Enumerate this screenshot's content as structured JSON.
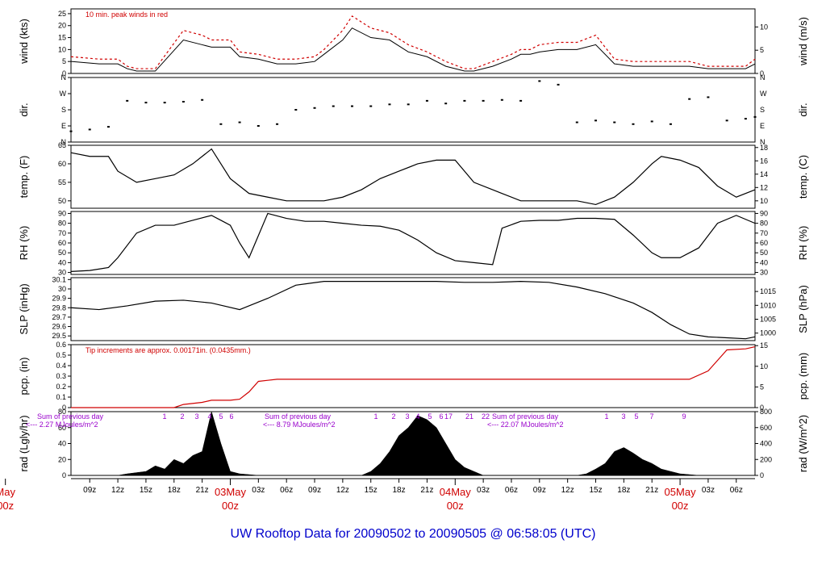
{
  "title": "UW Rooftop Data for 20090502  to  20090505 @ 06:58:05  (UTC)",
  "chart_data": [
    {
      "type": "line",
      "id": "wind",
      "ylabel": "wind (kts)",
      "ylabel_right": "wind (m/s)",
      "ylim": [
        0,
        27
      ],
      "yticks": [
        0,
        5,
        10,
        15,
        20,
        25
      ],
      "yticks_right": [
        0,
        5,
        10
      ],
      "annotation": "10 min. peak winds in red",
      "series": [
        {
          "color": "#000000",
          "x": [
            0,
            3,
            5,
            6,
            7,
            9,
            12,
            14,
            15,
            17,
            18,
            20,
            22,
            24,
            26,
            27,
            29,
            30,
            32,
            34,
            36,
            38,
            40,
            42,
            43,
            45,
            47,
            48,
            49,
            50,
            52,
            54,
            56,
            58,
            60,
            62,
            64,
            66,
            68,
            70,
            72,
            73
          ],
          "y": [
            5,
            4,
            4,
            2,
            1,
            1,
            14,
            12,
            11,
            11,
            7,
            6,
            4,
            4,
            5,
            8,
            14,
            19,
            15,
            14,
            9,
            7,
            3,
            1,
            1,
            3,
            6,
            8,
            8,
            9,
            10,
            10,
            12,
            4,
            3,
            3,
            3,
            3,
            2,
            2,
            2,
            4
          ]
        },
        {
          "color": "#d00000",
          "x": [
            0,
            3,
            5,
            6,
            7,
            9,
            12,
            14,
            15,
            17,
            18,
            20,
            22,
            24,
            26,
            27,
            29,
            30,
            32,
            34,
            36,
            38,
            40,
            42,
            43,
            45,
            47,
            48,
            49,
            50,
            52,
            54,
            56,
            58,
            60,
            62,
            64,
            66,
            68,
            70,
            72,
            73
          ],
          "y": [
            7,
            6,
            6,
            3,
            2,
            2,
            18,
            16,
            14,
            14,
            9,
            8,
            6,
            6,
            7,
            10,
            18,
            24,
            19,
            17,
            12,
            9,
            5,
            2,
            2,
            5,
            8,
            10,
            10,
            12,
            13,
            13,
            16,
            6,
            5,
            5,
            5,
            5,
            3,
            3,
            3,
            6
          ]
        }
      ]
    },
    {
      "type": "scatter",
      "id": "dir",
      "ylabel": "dir.",
      "ylabel_right": "dir.",
      "ylim": [
        0,
        360
      ],
      "yticks": [
        0,
        90,
        180,
        270,
        360
      ],
      "ytick_labels": [
        "N",
        "E",
        "S",
        "W",
        "N"
      ],
      "series": [
        {
          "color": "#000000",
          "x": [
            0,
            2,
            4,
            6,
            8,
            10,
            12,
            14,
            16,
            18,
            20,
            22,
            24,
            26,
            28,
            30,
            32,
            34,
            36,
            38,
            40,
            42,
            44,
            46,
            48,
            50,
            52,
            54,
            56,
            58,
            60,
            62,
            64,
            66,
            68,
            70,
            72,
            73
          ],
          "y": [
            60,
            70,
            85,
            230,
            220,
            220,
            225,
            235,
            100,
            110,
            90,
            100,
            180,
            190,
            200,
            200,
            200,
            210,
            210,
            230,
            215,
            230,
            230,
            235,
            230,
            340,
            320,
            110,
            120,
            110,
            100,
            115,
            100,
            240,
            250,
            120,
            130,
            140
          ]
        }
      ]
    },
    {
      "type": "line",
      "id": "temp",
      "ylabel": "temp. (F)",
      "ylabel_right": "temp. (C)",
      "ylim": [
        48,
        65
      ],
      "yticks": [
        50,
        55,
        60,
        65
      ],
      "yticks_right": [
        10,
        12,
        14,
        16,
        18
      ],
      "series": [
        {
          "color": "#000000",
          "x": [
            0,
            2,
            4,
            5,
            7,
            9,
            11,
            13,
            15,
            17,
            18,
            19,
            21,
            23,
            25,
            27,
            29,
            31,
            33,
            35,
            37,
            39,
            41,
            43,
            45,
            46,
            48,
            50,
            52,
            54,
            56,
            58,
            60,
            62,
            63,
            65,
            67,
            69,
            71,
            73
          ],
          "y": [
            63,
            62,
            62,
            58,
            55,
            56,
            57,
            60,
            64,
            56,
            54,
            52,
            51,
            50,
            50,
            50,
            51,
            53,
            56,
            58,
            60,
            61,
            61,
            55,
            53,
            52,
            50,
            50,
            50,
            50,
            49,
            51,
            55,
            60,
            62,
            61,
            59,
            54,
            51,
            53
          ]
        }
      ]
    },
    {
      "type": "line",
      "id": "rh",
      "ylabel": "RH (%)",
      "ylabel_right": "RH (%)",
      "ylim": [
        28,
        92
      ],
      "yticks": [
        30,
        40,
        50,
        60,
        70,
        80,
        90
      ],
      "yticks_right": [
        30,
        40,
        50,
        60,
        70,
        80,
        90
      ],
      "series": [
        {
          "color": "#000000",
          "x": [
            0,
            2,
            4,
            5,
            7,
            9,
            11,
            13,
            15,
            16,
            17,
            18,
            19,
            21,
            23,
            25,
            27,
            29,
            31,
            33,
            35,
            37,
            39,
            41,
            43,
            45,
            46,
            48,
            50,
            52,
            54,
            56,
            58,
            60,
            62,
            63,
            65,
            67,
            69,
            71,
            73
          ],
          "y": [
            31,
            32,
            35,
            45,
            70,
            78,
            78,
            83,
            88,
            83,
            78,
            60,
            45,
            90,
            85,
            82,
            82,
            80,
            78,
            77,
            73,
            63,
            50,
            42,
            40,
            38,
            75,
            82,
            83,
            83,
            85,
            85,
            84,
            68,
            50,
            45,
            45,
            55,
            80,
            88,
            80
          ]
        }
      ]
    },
    {
      "type": "line",
      "id": "slp",
      "ylabel": "SLP (inHg)",
      "ylabel_right": "SLP (hPa)",
      "ylim": [
        29.45,
        30.12
      ],
      "yticks": [
        29.5,
        29.6,
        29.7,
        29.8,
        29.9,
        30.0,
        30.1
      ],
      "yticks_right_hpa": [
        1000,
        1005,
        1010,
        1015
      ],
      "series": [
        {
          "color": "#000000",
          "x": [
            0,
            3,
            6,
            9,
            12,
            15,
            18,
            21,
            24,
            27,
            30,
            33,
            36,
            39,
            42,
            45,
            48,
            51,
            54,
            57,
            60,
            62,
            64,
            66,
            68,
            70,
            72,
            73
          ],
          "y": [
            29.8,
            29.78,
            29.82,
            29.87,
            29.88,
            29.85,
            29.78,
            29.9,
            30.04,
            30.08,
            30.08,
            30.08,
            30.08,
            30.08,
            30.07,
            30.07,
            30.08,
            30.07,
            30.02,
            29.95,
            29.85,
            29.75,
            29.62,
            29.52,
            29.49,
            29.48,
            29.47,
            29.49
          ]
        }
      ]
    },
    {
      "type": "area",
      "id": "pcp",
      "ylabel": "pcp. (in)",
      "ylabel_right": "pcp. (mm)",
      "ylim": [
        0,
        0.6
      ],
      "yticks": [
        0,
        0.1,
        0.2,
        0.3,
        0.4,
        0.5,
        0.6
      ],
      "yticks_right": [
        0,
        5,
        10,
        15
      ],
      "annotation": "Tip increments are approx. 0.00171in. (0.0435mm.)",
      "series": [
        {
          "color": "#d00000",
          "x": [
            0,
            11,
            12,
            14,
            15,
            17,
            18,
            19,
            20,
            21,
            22,
            28,
            42,
            52,
            60,
            64,
            66,
            68,
            70,
            72,
            73
          ],
          "y": [
            0,
            0,
            0.03,
            0.05,
            0.07,
            0.07,
            0.08,
            0.15,
            0.25,
            0.26,
            0.27,
            0.27,
            0.27,
            0.27,
            0.27,
            0.27,
            0.27,
            0.35,
            0.55,
            0.56,
            0.58
          ]
        }
      ]
    },
    {
      "type": "area",
      "id": "rad",
      "ylabel": "rad (Lgly/hr)",
      "ylabel_right": "rad (W/m^2)",
      "ylim": [
        0,
        80
      ],
      "yticks": [
        0,
        20,
        40,
        60,
        80
      ],
      "yticks_right": [
        0,
        200,
        400,
        600,
        800
      ],
      "annotations": [
        "Sum of previous day",
        "<--- 2.27 MJoules/m^2",
        "Sum of previous day",
        "<--- 8.79 MJoules/m^2",
        "Sum of previous day",
        "<--- 22.07 MJoules/m^2"
      ],
      "hour_marks": [
        "1",
        "2",
        "3",
        "4",
        "5",
        "6",
        "1",
        "2",
        "3",
        "4",
        "5",
        "6",
        "17",
        "21",
        "22",
        "1",
        "3",
        "5",
        "7",
        "9"
      ],
      "series": [
        {
          "color": "#000000",
          "x": [
            0,
            5,
            6,
            8,
            9,
            10,
            11,
            12,
            13,
            14,
            15,
            16,
            17,
            18,
            19,
            20,
            21,
            22,
            23,
            30,
            31,
            32,
            33,
            34,
            35,
            36,
            37,
            38,
            39,
            40,
            41,
            42,
            43,
            44,
            54,
            55,
            56,
            57,
            58,
            59,
            60,
            61,
            62,
            63,
            64,
            65,
            66,
            67,
            73
          ],
          "y": [
            0,
            0,
            2,
            5,
            12,
            8,
            20,
            15,
            25,
            30,
            80,
            40,
            5,
            2,
            1,
            0,
            0,
            0,
            0,
            0,
            0,
            5,
            15,
            30,
            50,
            60,
            75,
            70,
            60,
            40,
            20,
            10,
            5,
            0,
            0,
            2,
            8,
            15,
            30,
            35,
            28,
            20,
            15,
            8,
            5,
            2,
            1,
            0,
            0
          ]
        }
      ]
    }
  ],
  "x_axis": {
    "hours_total": 73,
    "tick_labels": [
      "09z",
      "12z",
      "15z",
      "18z",
      "21z",
      "03z",
      "06z",
      "09z",
      "12z",
      "15z",
      "18z",
      "21z",
      "03z",
      "06z",
      "09z",
      "12z",
      "15z",
      "18z",
      "21z",
      "03z",
      "06z"
    ],
    "tick_hours": [
      2,
      5,
      8,
      11,
      14,
      20,
      23,
      26,
      29,
      32,
      35,
      38,
      44,
      47,
      50,
      53,
      56,
      59,
      62,
      68,
      71
    ],
    "day_labels": [
      {
        "hour": -7,
        "line1": "May",
        "line2": "00z"
      },
      {
        "hour": 17,
        "line1": "03May",
        "line2": "00z"
      },
      {
        "hour": 41,
        "line1": "04May",
        "line2": "00z"
      },
      {
        "hour": 65,
        "line1": "05May",
        "line2": "00z"
      }
    ]
  }
}
